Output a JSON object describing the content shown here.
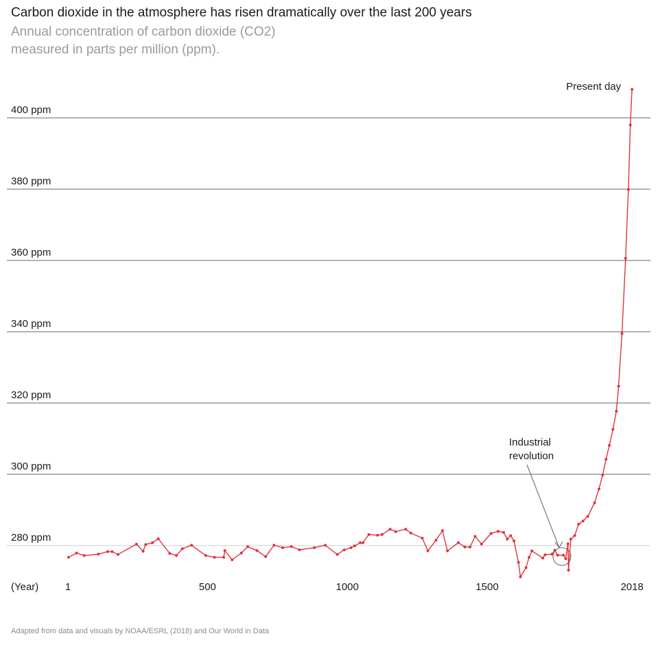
{
  "title": "Carbon dioxide in the atmosphere has risen dramatically over the last 200 years",
  "subtitle_line1": "Annual concentration of carbon dioxide (CO2)",
  "subtitle_line2": "measured in parts per million (ppm).",
  "footer": "Adapted from data and visuals by NOAA/ESRL (2018) and Our World in Data",
  "colors": {
    "series": "#e0333f",
    "grid_major": "#666666",
    "grid_base": "#cccccc",
    "annotation": "#777777"
  },
  "chart_data": {
    "type": "line",
    "title": "Carbon dioxide in the atmosphere has risen dramatically over the last 200 years",
    "xlabel": "(Year)",
    "ylabel": "",
    "xlim": [
      1,
      2018
    ],
    "ylim": [
      270,
      410
    ],
    "grid": true,
    "x_ticks": [
      {
        "value": 1,
        "label": "1"
      },
      {
        "value": 500,
        "label": "500"
      },
      {
        "value": 1000,
        "label": "1000"
      },
      {
        "value": 1500,
        "label": "1500"
      },
      {
        "value": 2018,
        "label": "2018"
      }
    ],
    "y_ticks": [
      {
        "value": 280,
        "label": "280 ppm"
      },
      {
        "value": 300,
        "label": "300 ppm"
      },
      {
        "value": 320,
        "label": "320 ppm"
      },
      {
        "value": 340,
        "label": "340 ppm"
      },
      {
        "value": 360,
        "label": "360 ppm"
      },
      {
        "value": 380,
        "label": "380 ppm"
      },
      {
        "value": 400,
        "label": "400 ppm"
      }
    ],
    "annotations": [
      {
        "text": "Present day",
        "x": 2018,
        "y": 408
      },
      {
        "text_line1": "Industrial",
        "text_line2": "revolution",
        "x": 1760,
        "y": 277.3
      }
    ],
    "x": [
      3,
      32,
      59,
      110,
      143,
      159,
      180,
      246,
      270,
      279,
      303,
      324,
      365,
      389,
      410,
      443,
      494,
      525,
      558,
      562,
      588,
      621,
      644,
      677,
      708,
      738,
      769,
      800,
      829,
      882,
      921,
      964,
      989,
      1013,
      1026,
      1046,
      1056,
      1077,
      1108,
      1124,
      1153,
      1173,
      1209,
      1227,
      1268,
      1288,
      1317,
      1340,
      1358,
      1397,
      1420,
      1439,
      1457,
      1480,
      1514,
      1539,
      1559,
      1572,
      1584,
      1596,
      1612,
      1619,
      1639,
      1650,
      1660,
      1699,
      1707,
      1732,
      1742,
      1752,
      1773,
      1781,
      1789,
      1791,
      1799,
      1813,
      1827,
      1843,
      1860,
      1884,
      1900,
      1913,
      1925,
      1937,
      1950,
      1962,
      1970,
      1982,
      1995,
      2005,
      2012,
      2018
    ],
    "y": [
      276.7,
      277.9,
      277.2,
      277.6,
      278.3,
      278.3,
      277.5,
      280.4,
      278.4,
      280.3,
      280.8,
      281.9,
      277.8,
      277.2,
      279.1,
      280.1,
      277.2,
      276.7,
      276.7,
      278.6,
      276.0,
      277.9,
      279.7,
      278.6,
      276.9,
      280.1,
      279.4,
      279.7,
      278.8,
      279.4,
      280.1,
      277.5,
      278.8,
      279.4,
      279.9,
      280.8,
      280.8,
      283.1,
      282.9,
      283.1,
      284.6,
      283.9,
      284.6,
      283.5,
      282.1,
      278.5,
      281.5,
      284.2,
      278.5,
      280.8,
      279.6,
      279.6,
      282.6,
      280.4,
      283.4,
      284.0,
      283.7,
      281.8,
      282.8,
      281.3,
      275.3,
      271.2,
      273.8,
      276.7,
      278.5,
      276.5,
      277.4,
      277.6,
      278.7,
      277.3,
      277.3,
      276.3,
      280.5,
      273.1,
      281.8,
      282.8,
      286.0,
      286.9,
      288.2,
      292.0,
      295.9,
      299.8,
      304.2,
      308.1,
      312.6,
      317.7,
      324.7,
      339.5,
      360.6,
      379.9,
      398.0,
      408.0
    ]
  }
}
